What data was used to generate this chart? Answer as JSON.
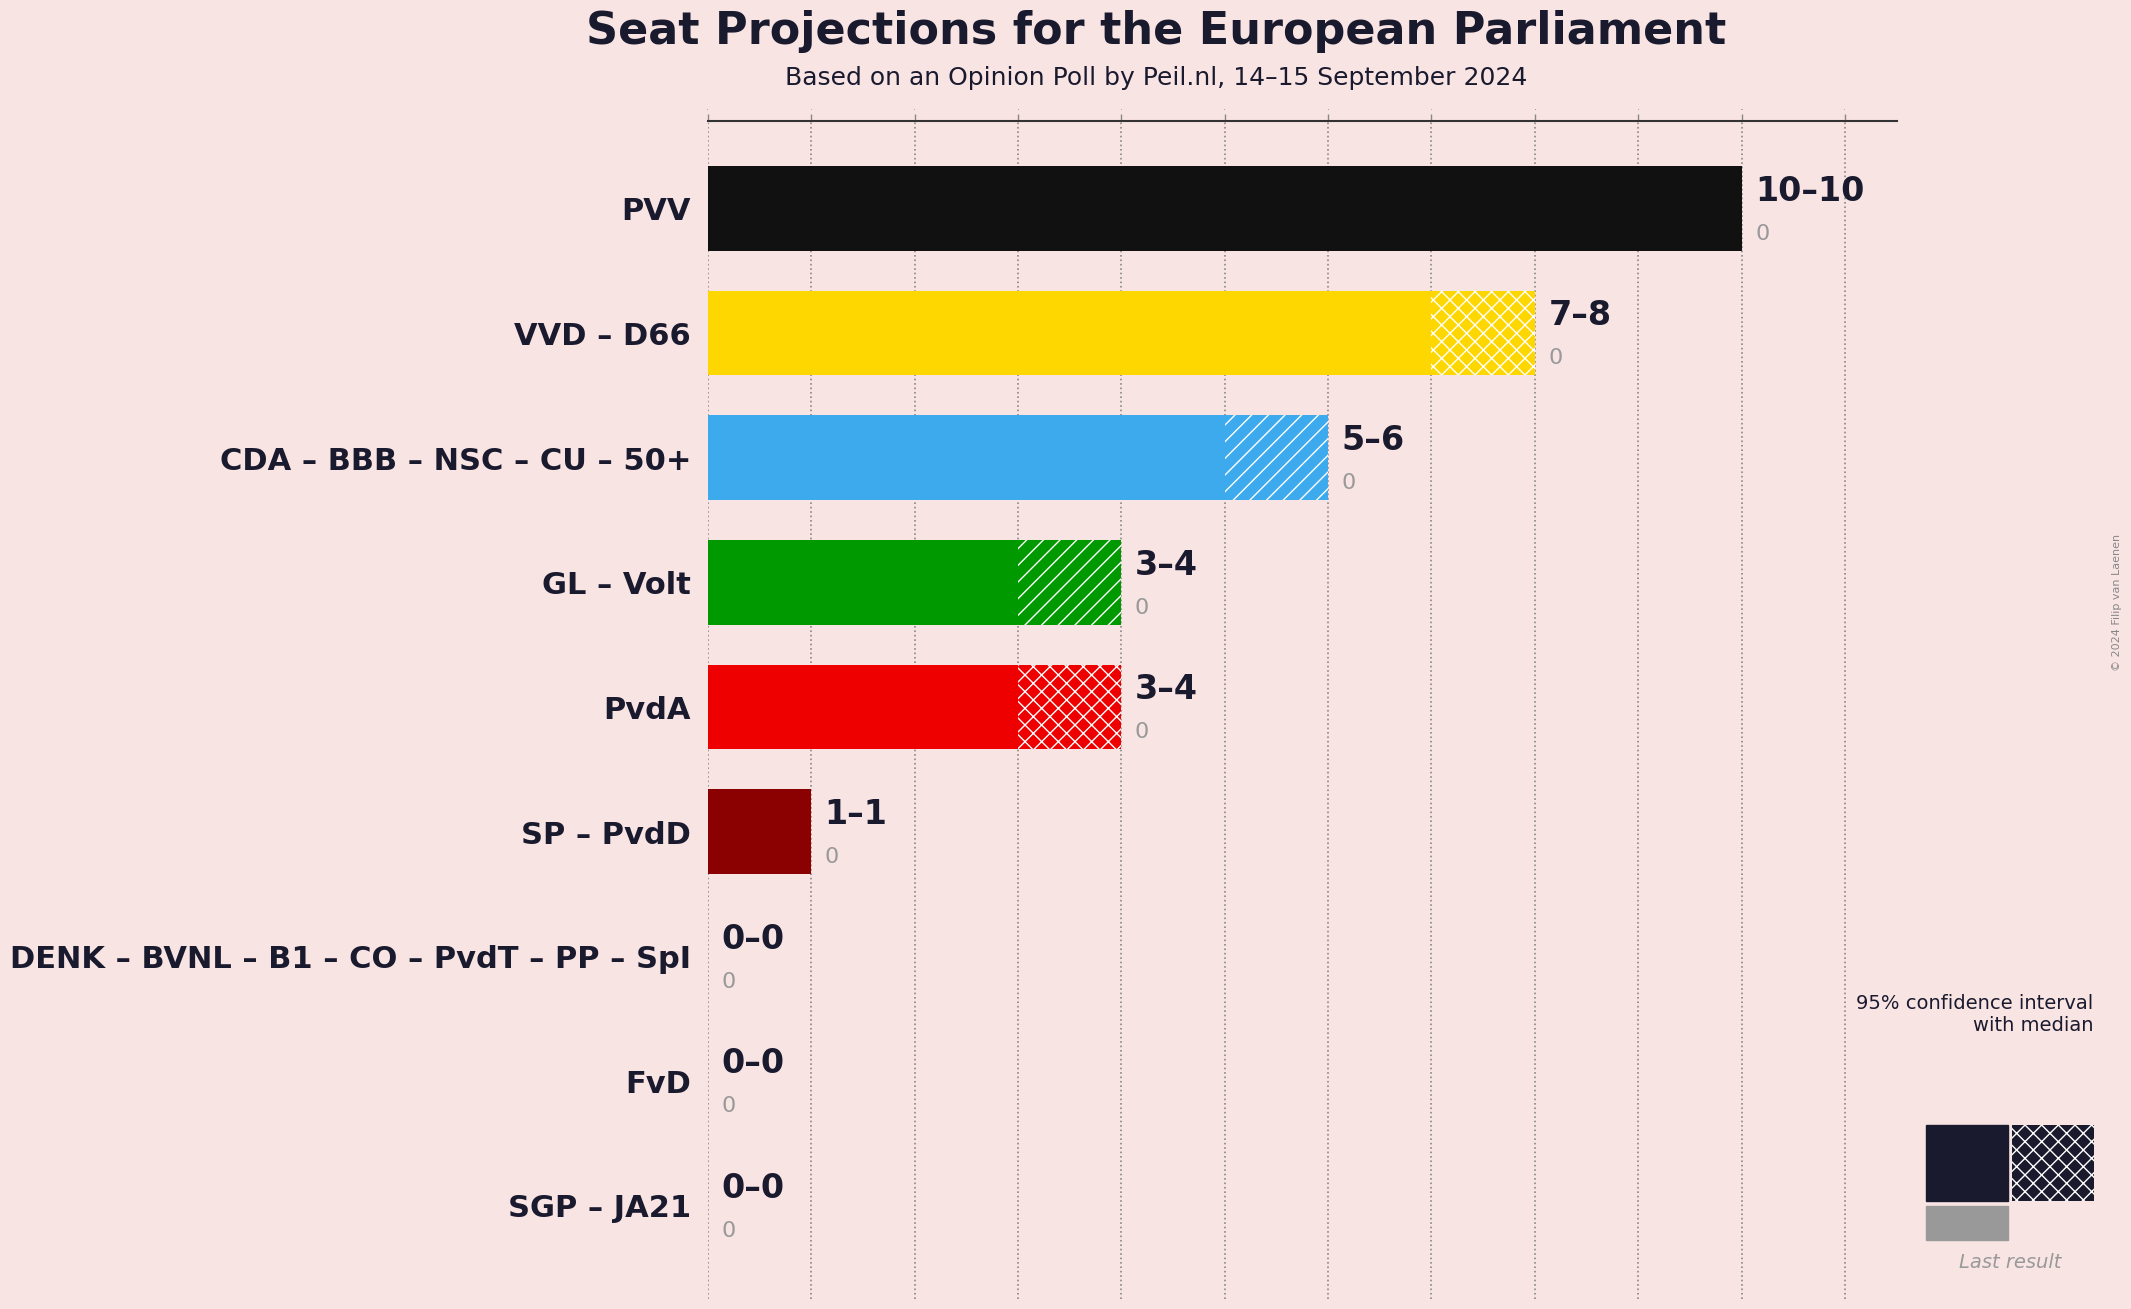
{
  "title": "Seat Projections for the European Parliament",
  "subtitle": "Based on an Opinion Poll by Peil.nl, 14–15 September 2024",
  "copyright": "© 2024 Filip van Laenen",
  "background_color": "#f9e4e4",
  "parties": [
    {
      "name": "PVV",
      "min": 10,
      "max": 10,
      "last": 0,
      "color": "#111111",
      "hatch": "xx"
    },
    {
      "name": "VVD – D66",
      "min": 7,
      "max": 8,
      "last": 0,
      "color": "#FFD700",
      "hatch": "xx"
    },
    {
      "name": "CDA – BBB – NSC – CU – 50+",
      "min": 5,
      "max": 6,
      "last": 0,
      "color": "#3DAAEE",
      "hatch": "//"
    },
    {
      "name": "GL – Volt",
      "min": 3,
      "max": 4,
      "last": 0,
      "color": "#009900",
      "hatch": "//"
    },
    {
      "name": "PvdA",
      "min": 3,
      "max": 4,
      "last": 0,
      "color": "#EE0000",
      "hatch": "xx"
    },
    {
      "name": "SP – PvdD",
      "min": 1,
      "max": 1,
      "last": 0,
      "color": "#8B0000",
      "hatch": null
    },
    {
      "name": "DENK – BVNL – B1 – CO – PvdT – PP – SpI",
      "min": 0,
      "max": 0,
      "last": 0,
      "color": null,
      "hatch": null
    },
    {
      "name": "FvD",
      "min": 0,
      "max": 0,
      "last": 0,
      "color": null,
      "hatch": null
    },
    {
      "name": "SGP – JA21",
      "min": 0,
      "max": 0,
      "last": 0,
      "color": null,
      "hatch": null
    }
  ],
  "xlim_max": 11,
  "bar_height": 0.68,
  "label_fontsize": 24,
  "title_fontsize": 32,
  "subtitle_fontsize": 18,
  "party_fontsize": 22,
  "annotation_fontsize": 16,
  "text_color": "#1a1a2e",
  "gray_color": "#999999",
  "legend_dark_color": "#1a1a2e",
  "grid_color": "#888888"
}
